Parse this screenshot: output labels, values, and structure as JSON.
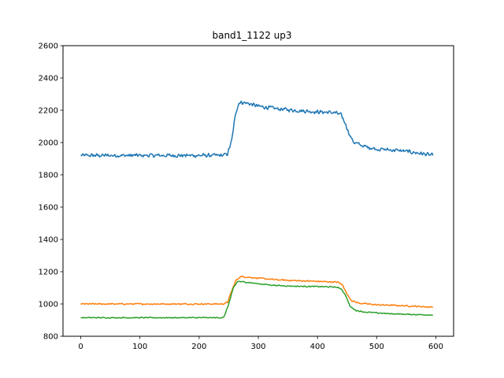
{
  "chart_data": {
    "type": "line",
    "title": "band1_1122 up3",
    "xlabel": "",
    "ylabel": "",
    "xlim": [
      -30,
      630
    ],
    "ylim": [
      800,
      2600
    ],
    "xticks": [
      0,
      100,
      200,
      300,
      400,
      500,
      600
    ],
    "yticks": [
      800,
      1000,
      1200,
      1400,
      1600,
      1800,
      2000,
      2200,
      2400,
      2600
    ],
    "grid": false,
    "legend": "none",
    "x_range": [
      0,
      595
    ],
    "series": [
      {
        "color": "#1f77b4",
        "noise": 14,
        "profile": [
          [
            0,
            1920
          ],
          [
            240,
            1920
          ],
          [
            248,
            1930
          ],
          [
            255,
            2010
          ],
          [
            262,
            2190
          ],
          [
            268,
            2250
          ],
          [
            280,
            2245
          ],
          [
            300,
            2225
          ],
          [
            330,
            2210
          ],
          [
            360,
            2200
          ],
          [
            400,
            2190
          ],
          [
            430,
            2185
          ],
          [
            440,
            2170
          ],
          [
            448,
            2110
          ],
          [
            455,
            2040
          ],
          [
            462,
            2000
          ],
          [
            480,
            1975
          ],
          [
            500,
            1960
          ],
          [
            540,
            1950
          ],
          [
            570,
            1935
          ],
          [
            595,
            1920
          ]
        ]
      },
      {
        "color": "#ff7f0e",
        "noise": 5,
        "profile": [
          [
            0,
            1000
          ],
          [
            240,
            1000
          ],
          [
            248,
            1010
          ],
          [
            255,
            1080
          ],
          [
            262,
            1145
          ],
          [
            270,
            1170
          ],
          [
            300,
            1160
          ],
          [
            330,
            1150
          ],
          [
            360,
            1145
          ],
          [
            400,
            1140
          ],
          [
            435,
            1135
          ],
          [
            443,
            1115
          ],
          [
            450,
            1060
          ],
          [
            458,
            1020
          ],
          [
            470,
            1005
          ],
          [
            500,
            995
          ],
          [
            540,
            990
          ],
          [
            570,
            985
          ],
          [
            595,
            980
          ]
        ]
      },
      {
        "color": "#2ca02c",
        "noise": 4,
        "profile": [
          [
            0,
            915
          ],
          [
            235,
            915
          ],
          [
            242,
            918
          ],
          [
            250,
            1000
          ],
          [
            258,
            1100
          ],
          [
            265,
            1140
          ],
          [
            280,
            1135
          ],
          [
            300,
            1125
          ],
          [
            330,
            1115
          ],
          [
            360,
            1110
          ],
          [
            400,
            1108
          ],
          [
            430,
            1105
          ],
          [
            440,
            1095
          ],
          [
            448,
            1050
          ],
          [
            455,
            985
          ],
          [
            465,
            960
          ],
          [
            480,
            950
          ],
          [
            520,
            940
          ],
          [
            560,
            935
          ],
          [
            595,
            932
          ]
        ]
      }
    ]
  }
}
